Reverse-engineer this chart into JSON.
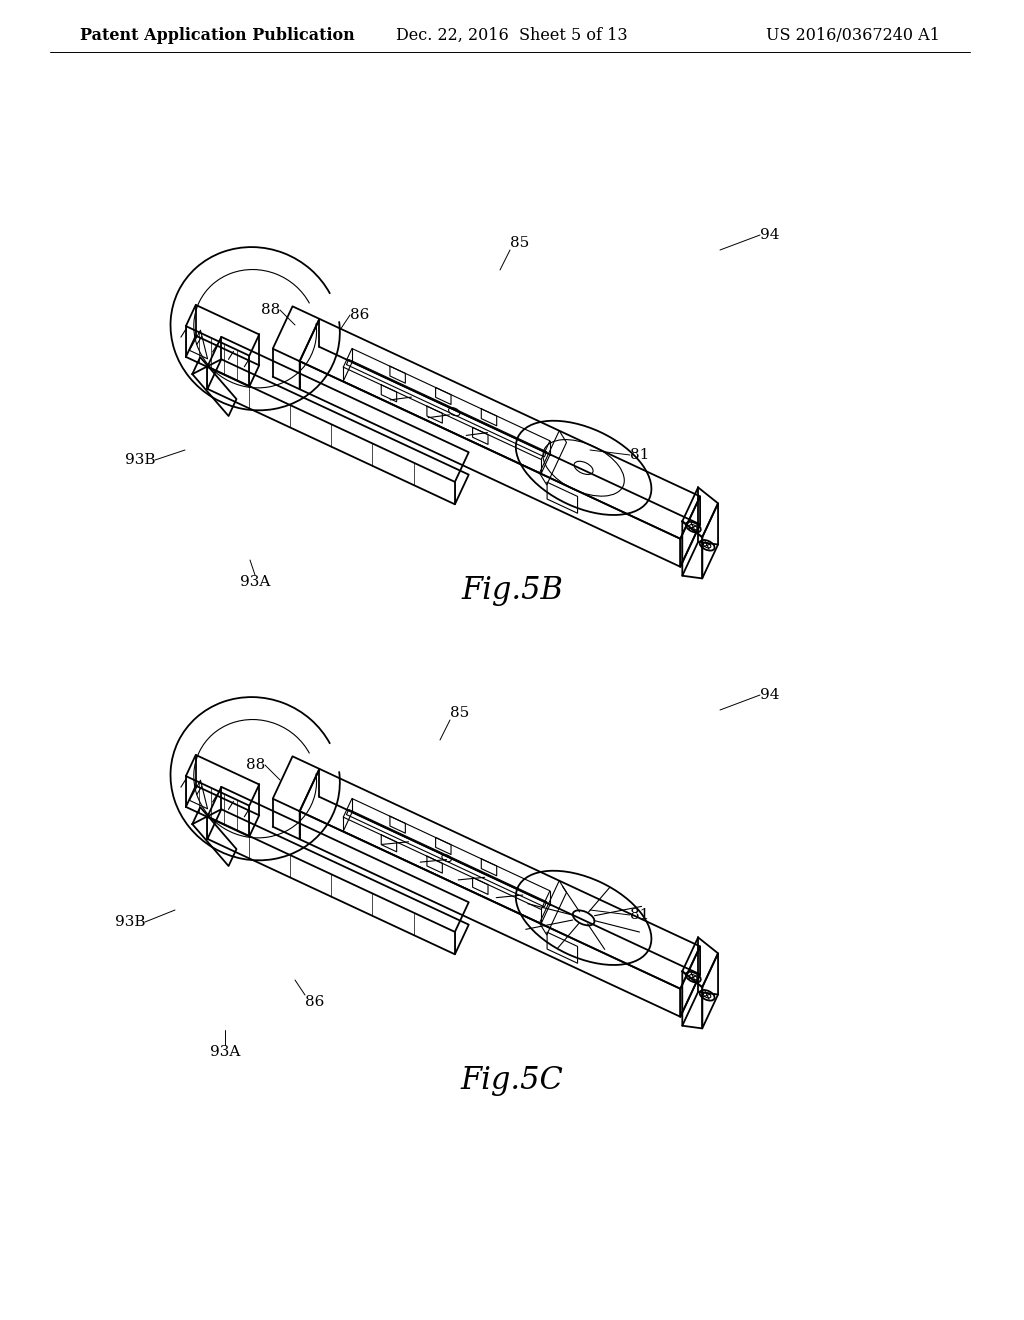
{
  "background_color": "#ffffff",
  "header": {
    "left": "Patent Application Publication",
    "center": "Dec. 22, 2016  Sheet 5 of 13",
    "right": "US 2016/0367240 A1",
    "fontsize": 11.5
  },
  "fig5b_label": "Fig.5B",
  "fig5c_label": "Fig.5C",
  "label_fontsize": 22,
  "annotation_fontsize": 11,
  "line_color": "#000000",
  "text_color": "#000000"
}
